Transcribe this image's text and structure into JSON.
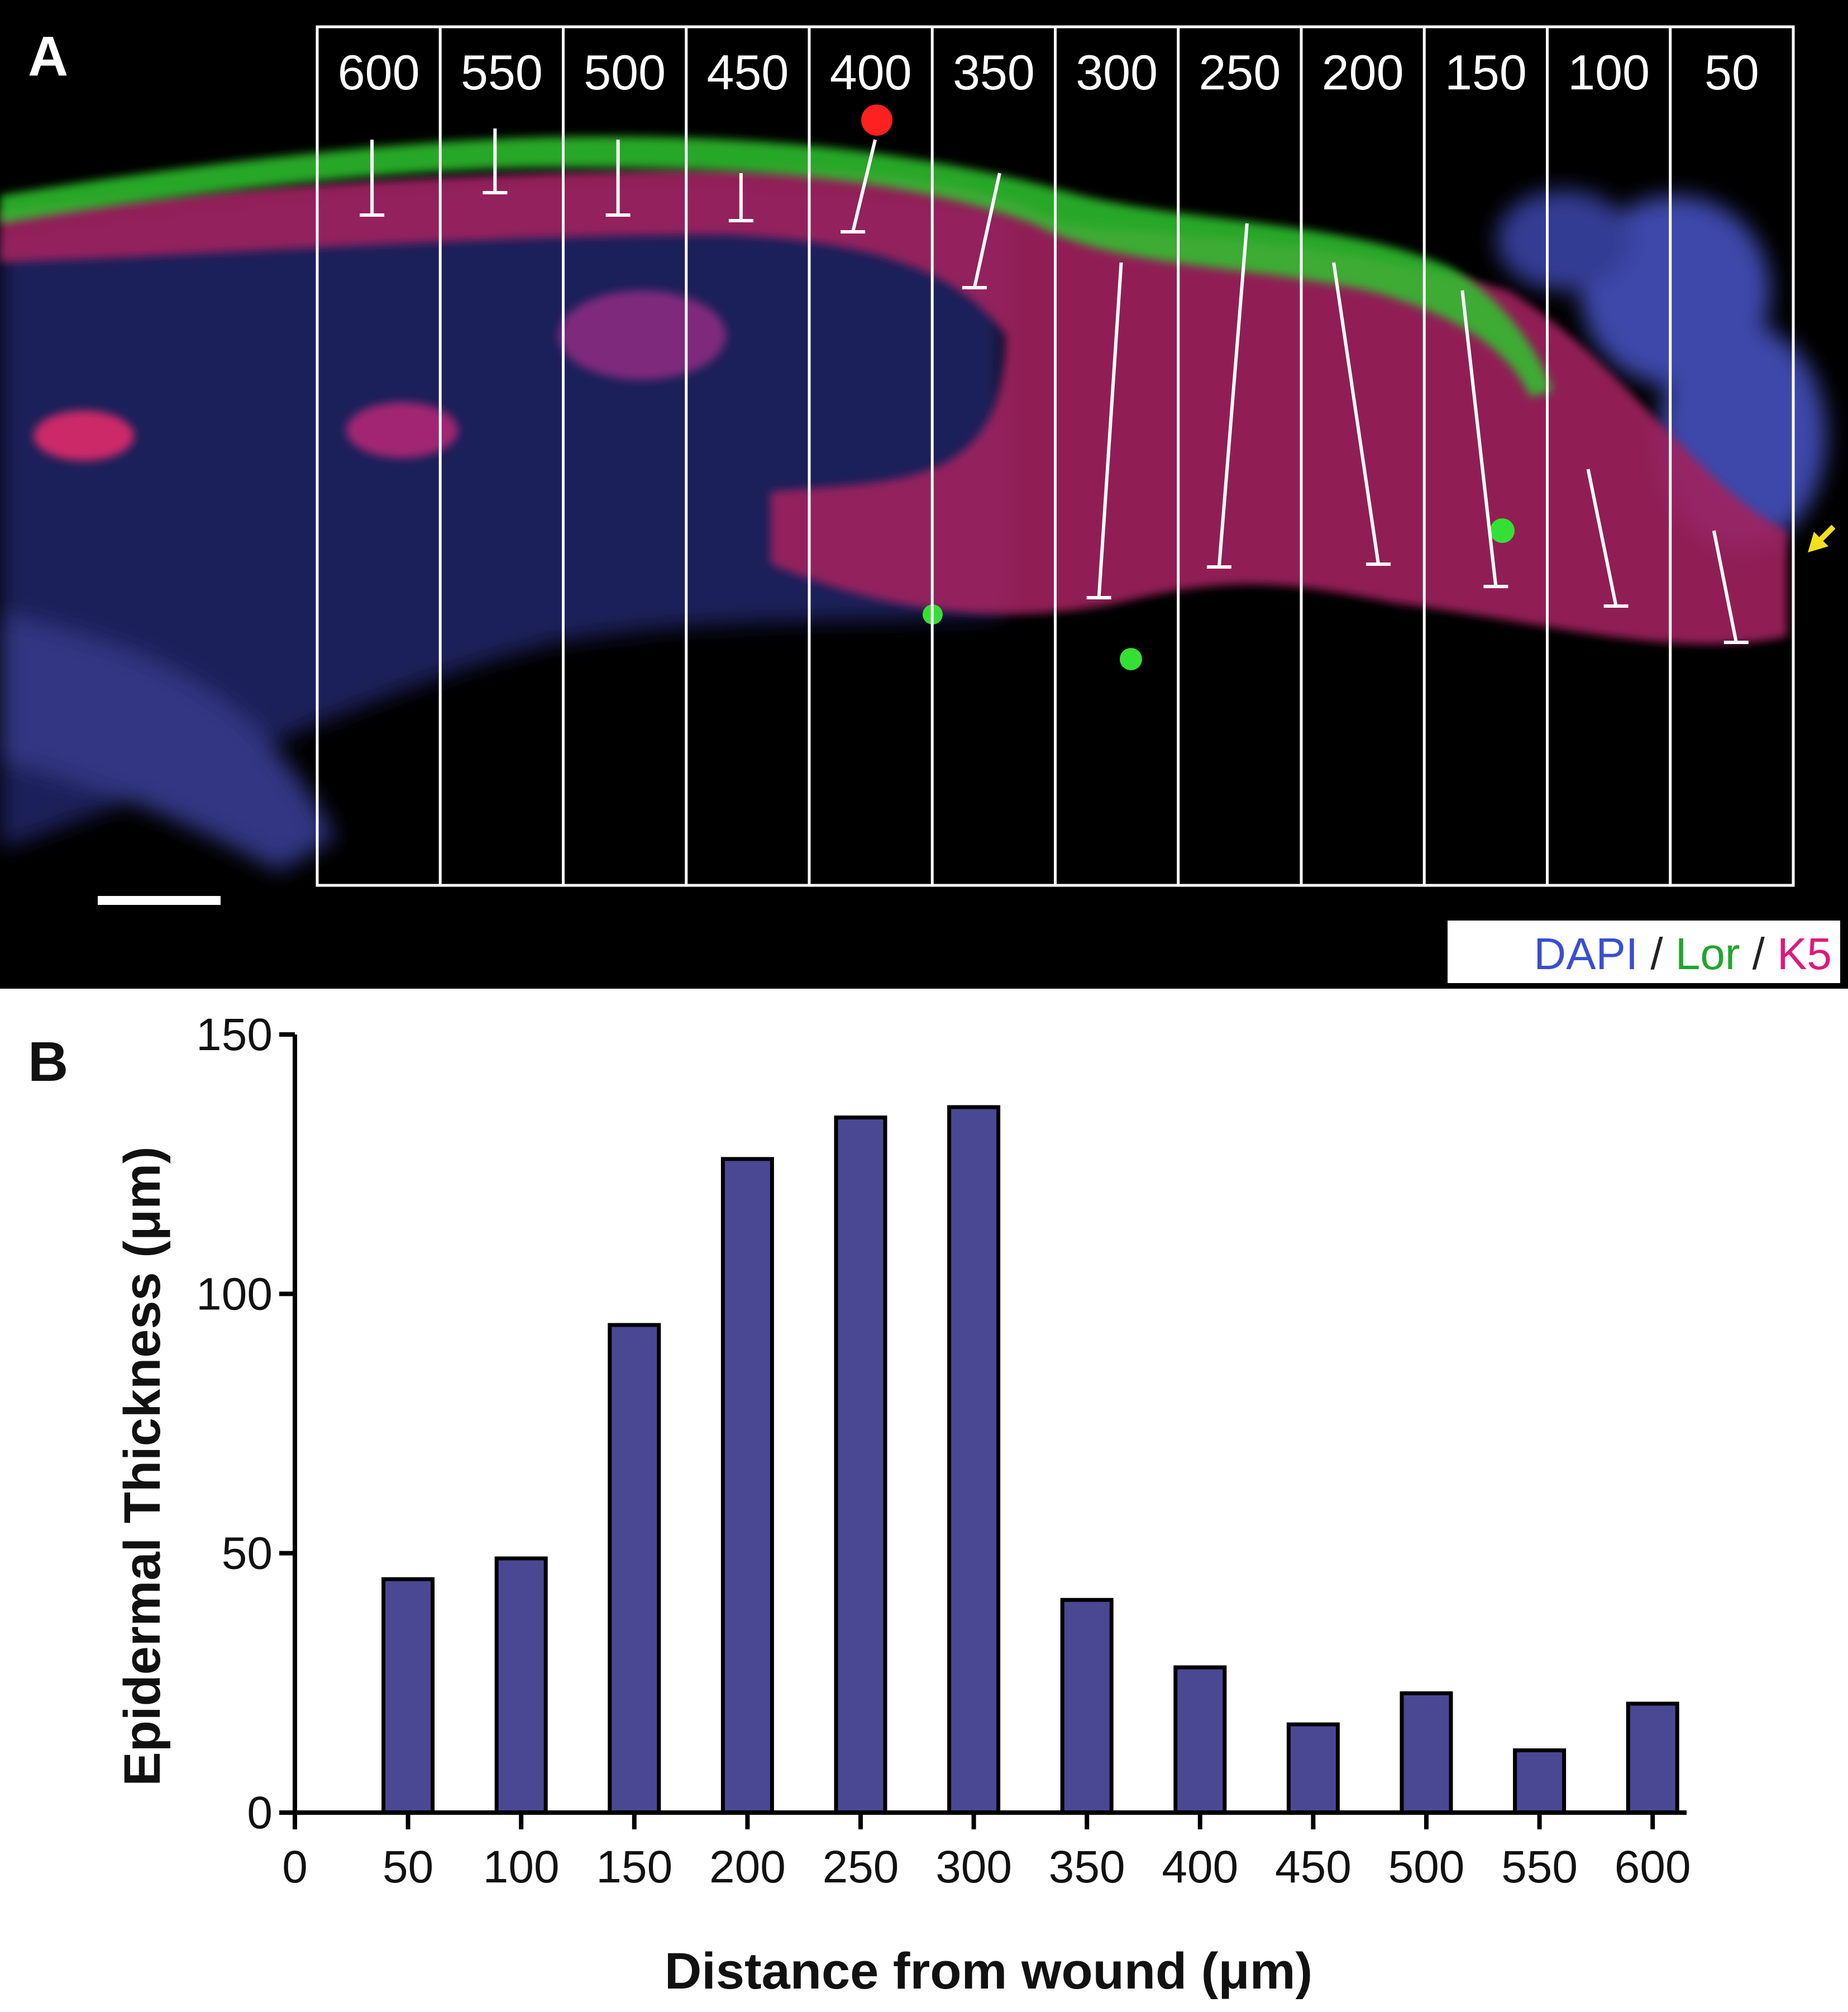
{
  "panel_a": {
    "label": "A",
    "bin_labels": [
      "600",
      "550",
      "500",
      "450",
      "400",
      "350",
      "300",
      "250",
      "200",
      "150",
      "100",
      "50"
    ],
    "legend": [
      {
        "text": "DAPI",
        "color": "#3a4fd0"
      },
      {
        "text": " / ",
        "color": "#222222"
      },
      {
        "text": "Lor",
        "color": "#1fa62c"
      },
      {
        "text": " / ",
        "color": "#222222"
      },
      {
        "text": "K5",
        "color": "#e0187a"
      }
    ],
    "stain_colors": {
      "dapi": "#3a4fd0",
      "loricrin": "#2ed12e",
      "k5": "#e0187a",
      "arrow": "#f2e01a"
    }
  },
  "panel_b": {
    "label": "B"
  },
  "chart_data": {
    "type": "bar",
    "categories": [
      "50",
      "100",
      "150",
      "200",
      "250",
      "300",
      "350",
      "400",
      "450",
      "500",
      "550",
      "600"
    ],
    "x": [
      50,
      100,
      150,
      200,
      250,
      300,
      350,
      400,
      450,
      500,
      550,
      600
    ],
    "values": [
      45,
      49,
      94,
      126,
      134,
      136,
      41,
      28,
      17,
      23,
      12,
      21
    ],
    "xlabel": "Distance from wound (μm)",
    "ylabel": "Epidermal Thickness (μm)",
    "xlim": [
      0,
      615
    ],
    "ylim": [
      0,
      150
    ],
    "xticks": [
      0,
      50,
      100,
      150,
      200,
      250,
      300,
      350,
      400,
      450,
      500,
      550,
      600
    ],
    "yticks": [
      0,
      50,
      100,
      150
    ],
    "bar_color": "#4a4893",
    "bar_edge_color": "#000000",
    "grid": false
  }
}
